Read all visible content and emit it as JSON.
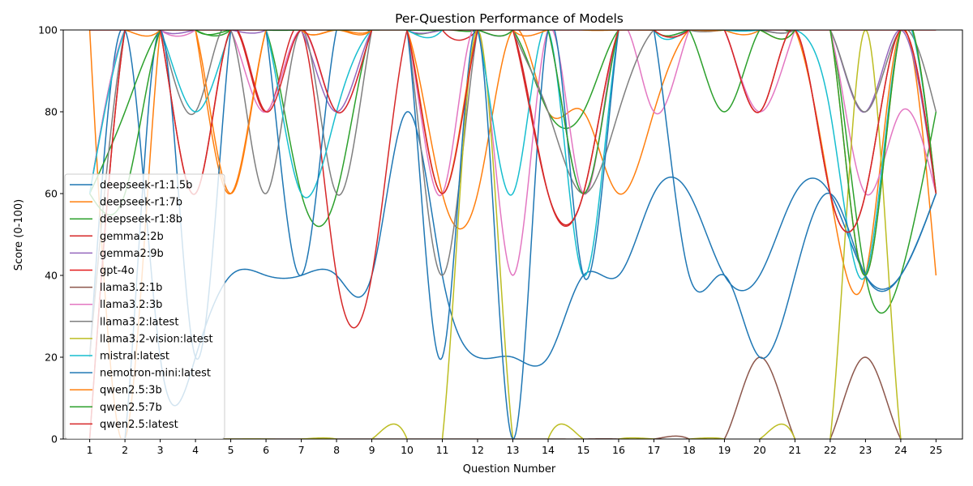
{
  "chart_data": {
    "type": "line",
    "title": "Per-Question Performance of Models",
    "xlabel": "Question Number",
    "ylabel": "Score (0-100)",
    "xlim": [
      0.25,
      25.75
    ],
    "ylim": [
      0,
      100
    ],
    "x_ticks": [
      1,
      2,
      3,
      4,
      5,
      6,
      7,
      8,
      9,
      10,
      11,
      12,
      13,
      14,
      15,
      16,
      17,
      18,
      19,
      20,
      21,
      22,
      23,
      24,
      25
    ],
    "y_ticks": [
      0,
      20,
      40,
      60,
      80,
      100
    ],
    "grid": false,
    "legend_position": "lower-left",
    "x": [
      1,
      2,
      3,
      4,
      5,
      6,
      7,
      8,
      9,
      10,
      11,
      12,
      13,
      14,
      15,
      16,
      17,
      18,
      19,
      20,
      21,
      22,
      23,
      24,
      25
    ],
    "series": [
      {
        "name": "deepseek-r1:1.5b",
        "color": "#1f77b4",
        "values": [
          20,
          100,
          20,
          20,
          40,
          40,
          40,
          40,
          40,
          80,
          40,
          20,
          20,
          20,
          40,
          40,
          60,
          60,
          40,
          40,
          60,
          60,
          40,
          40,
          60
        ]
      },
      {
        "name": "deepseek-r1:7b",
        "color": "#ff7f0e",
        "values": [
          100,
          0,
          100,
          100,
          60,
          100,
          100,
          100,
          100,
          100,
          60,
          60,
          100,
          80,
          80,
          60,
          80,
          100,
          100,
          100,
          100,
          60,
          40,
          100,
          40
        ]
      },
      {
        "name": "deepseek-r1:8b",
        "color": "#2ca02c",
        "values": [
          60,
          80,
          100,
          100,
          100,
          100,
          60,
          60,
          100,
          100,
          100,
          100,
          100,
          80,
          80,
          100,
          100,
          100,
          80,
          100,
          100,
          100,
          40,
          40,
          80
        ]
      },
      {
        "name": "gemma2:2b",
        "color": "#d62728",
        "values": [
          0,
          100,
          100,
          60,
          100,
          80,
          100,
          40,
          40,
          100,
          100,
          100,
          100,
          60,
          60,
          100,
          100,
          100,
          100,
          80,
          100,
          60,
          60,
          100,
          60
        ]
      },
      {
        "name": "gemma2:9b",
        "color": "#9467bd",
        "values": [
          60,
          100,
          100,
          100,
          100,
          100,
          100,
          80,
          100,
          100,
          100,
          100,
          100,
          100,
          60,
          100,
          100,
          100,
          100,
          100,
          100,
          100,
          80,
          100,
          60
        ]
      },
      {
        "name": "gpt-4o",
        "color": "#e31a1c",
        "values": [
          100,
          100,
          100,
          100,
          100,
          100,
          100,
          100,
          100,
          100,
          100,
          100,
          100,
          100,
          100,
          100,
          100,
          100,
          100,
          100,
          100,
          100,
          100,
          100,
          100
        ]
      },
      {
        "name": "llama3.2:1b",
        "color": "#8c564b",
        "values": [
          0,
          0,
          0,
          0,
          0,
          0,
          0,
          0,
          0,
          0,
          0,
          0,
          0,
          0,
          0,
          0,
          0,
          0,
          0,
          20,
          0,
          0,
          20,
          0,
          0
        ]
      },
      {
        "name": "llama3.2:3b",
        "color": "#e377c2",
        "values": [
          60,
          100,
          100,
          100,
          100,
          80,
          100,
          80,
          100,
          100,
          60,
          100,
          40,
          100,
          60,
          100,
          80,
          100,
          100,
          80,
          100,
          100,
          60,
          80,
          60
        ]
      },
      {
        "name": "llama3.2:latest",
        "color": "#7f7f7f",
        "values": [
          20,
          100,
          100,
          80,
          100,
          60,
          100,
          60,
          100,
          100,
          40,
          100,
          100,
          80,
          60,
          80,
          100,
          100,
          100,
          100,
          100,
          100,
          80,
          100,
          80
        ]
      },
      {
        "name": "llama3.2-vision:latest",
        "color": "#bcbd22",
        "values": [
          0,
          0,
          0,
          0,
          0,
          0,
          0,
          0,
          0,
          0,
          0,
          100,
          0,
          0,
          0,
          0,
          0,
          0,
          0,
          0,
          0,
          0,
          100,
          0,
          0
        ]
      },
      {
        "name": "mistral:latest",
        "color": "#17becf",
        "values": [
          60,
          100,
          100,
          80,
          100,
          100,
          60,
          80,
          100,
          100,
          100,
          100,
          60,
          100,
          40,
          100,
          100,
          100,
          100,
          100,
          100,
          80,
          40,
          100,
          60
        ]
      },
      {
        "name": "nemotron-mini:latest",
        "color": "#1f77b4",
        "values": [
          0,
          0,
          100,
          20,
          100,
          100,
          40,
          100,
          100,
          100,
          20,
          100,
          0,
          100,
          40,
          100,
          100,
          40,
          40,
          20,
          40,
          60,
          40,
          40,
          60
        ]
      },
      {
        "name": "qwen2.5:3b",
        "color": "#ff7f0e",
        "values": [
          100,
          100,
          100,
          100,
          60,
          100,
          100,
          100,
          100,
          100,
          60,
          100,
          100,
          100,
          100,
          100,
          100,
          100,
          100,
          100,
          100,
          100,
          40,
          100,
          60
        ]
      },
      {
        "name": "qwen2.5:7b",
        "color": "#2ca02c",
        "values": [
          60,
          60,
          100,
          100,
          100,
          100,
          100,
          100,
          100,
          100,
          100,
          100,
          100,
          100,
          60,
          100,
          100,
          100,
          100,
          100,
          100,
          100,
          40,
          100,
          60
        ]
      },
      {
        "name": "qwen2.5:latest",
        "color": "#d62728",
        "values": [
          0,
          100,
          100,
          60,
          100,
          80,
          100,
          80,
          100,
          100,
          60,
          100,
          100,
          60,
          60,
          100,
          100,
          100,
          100,
          80,
          100,
          60,
          60,
          100,
          60
        ]
      }
    ]
  }
}
